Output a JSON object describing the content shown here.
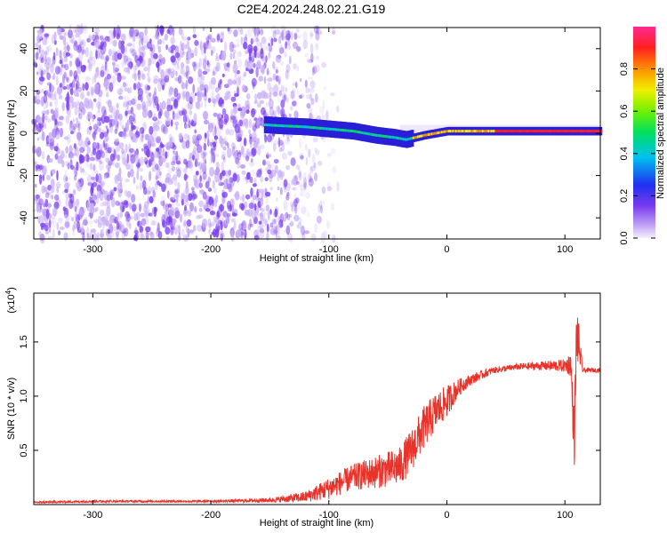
{
  "title": "C2E4.2024.248.02.21.G19",
  "colors": {
    "spectrogram_noise": "#7a3cf0",
    "snr_line": "#e8332b",
    "axis": "#000000"
  },
  "chart_data": [
    {
      "type": "heatmap",
      "name": "spectrogram",
      "xlabel": "Height of straight line (km)",
      "ylabel": "Frequency (Hz)",
      "xlim": [
        -350,
        130
      ],
      "ylim": [
        -50,
        50
      ],
      "xticks": [
        -300,
        -200,
        -100,
        0,
        100
      ],
      "xtick_labels": [
        "-300",
        "-200",
        "-100",
        "0",
        "100"
      ],
      "yticks": [
        -40,
        -20,
        0,
        20,
        40
      ],
      "ytick_labels": [
        "-40",
        "-20",
        "0",
        "20",
        "40"
      ],
      "colorbar": {
        "label": "Normalized spectral amplitude",
        "range": [
          0,
          1
        ],
        "ticks": [
          0.0,
          0.2,
          0.4,
          0.6,
          0.8
        ],
        "tick_labels": [
          "0.0",
          "0.2",
          "0.4",
          "0.6",
          "0.8"
        ],
        "colormap": "rainbow"
      },
      "signal_trace": {
        "x": [
          -155,
          -140,
          -120,
          -100,
          -80,
          -60,
          -45,
          -35,
          -20,
          0,
          20,
          60,
          100,
          130
        ],
        "y": [
          4,
          3.5,
          3,
          2,
          1,
          -1,
          -2,
          -3,
          -1,
          1,
          1,
          1,
          1,
          1
        ],
        "start_x": -155,
        "peak_amplitude": 1.0
      },
      "noise_region": {
        "x_from": -350,
        "x_to": -150,
        "fade_to": -90
      },
      "grid": false
    },
    {
      "type": "line",
      "name": "snr",
      "xlabel": "Height of straight line (km)",
      "ylabel": "SNR (10 * v/v)",
      "y_multiplier_label": "(x10",
      "y_multiplier_exp": "4",
      "xlim": [
        -350,
        130
      ],
      "ylim": [
        0,
        1.95
      ],
      "xticks": [
        -300,
        -200,
        -100,
        0,
        100
      ],
      "xtick_labels": [
        "-300",
        "-200",
        "-100",
        "0",
        "100"
      ],
      "yticks": [
        0.5,
        1.0,
        1.5
      ],
      "ytick_labels": [
        "0.5",
        "1.0",
        "1.5"
      ],
      "series": [
        {
          "x": [
            -350,
            -300,
            -250,
            -200,
            -150,
            -120,
            -100,
            -80,
            -60,
            -40,
            -30,
            -20,
            -10,
            0,
            10,
            20,
            30,
            40,
            60,
            80,
            100,
            105,
            108,
            110,
            115,
            130
          ],
          "y": [
            0.02,
            0.03,
            0.03,
            0.03,
            0.04,
            0.07,
            0.15,
            0.25,
            0.3,
            0.35,
            0.5,
            0.7,
            0.85,
            0.95,
            1.08,
            1.15,
            1.2,
            1.24,
            1.27,
            1.28,
            1.28,
            1.3,
            0.6,
            1.6,
            1.24,
            1.24
          ],
          "noise": [
            0.01,
            0.01,
            0.01,
            0.01,
            0.02,
            0.05,
            0.1,
            0.12,
            0.15,
            0.18,
            0.2,
            0.2,
            0.18,
            0.15,
            0.08,
            0.05,
            0.04,
            0.03,
            0.03,
            0.04,
            0.06,
            0.12,
            0.3,
            0.3,
            0.02,
            0.02
          ]
        }
      ],
      "grid": false
    }
  ]
}
